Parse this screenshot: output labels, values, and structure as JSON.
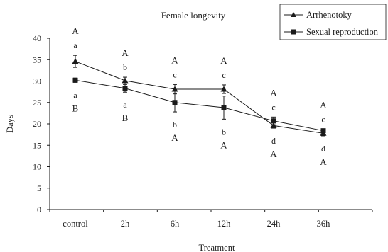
{
  "chart_data": {
    "type": "line",
    "title": "Female longevity",
    "xlabel": "Treatment",
    "ylabel": "Days",
    "categories": [
      "control",
      "2h",
      "6h",
      "12h",
      "24h",
      "36h"
    ],
    "ylim": [
      0,
      40
    ],
    "yticks": [
      0,
      5,
      10,
      15,
      20,
      25,
      30,
      35,
      40
    ],
    "grid": false,
    "legend_position": "top-right",
    "series": [
      {
        "name": "Arrhenotoky",
        "marker": "triangle",
        "values": [
          34.6,
          30.1,
          28.1,
          28.1,
          19.6,
          17.8
        ],
        "errors": [
          1.4,
          0.8,
          1.1,
          1.0,
          0.6,
          0.6
        ],
        "letters_lower": [
          "a",
          "b",
          "c",
          "c",
          "d",
          "d"
        ],
        "letters_upper": [
          "A",
          "A",
          "A",
          "A",
          "A",
          "A"
        ]
      },
      {
        "name": "Sexual reproduction",
        "marker": "square",
        "values": [
          30.2,
          28.3,
          25.0,
          23.8,
          20.7,
          18.4
        ],
        "errors": [
          0.5,
          0.9,
          2.2,
          2.7,
          0.9,
          0.4
        ],
        "letters_lower": [
          "a",
          "a",
          "b",
          "b",
          "c",
          "c"
        ],
        "letters_upper": [
          "B",
          "B",
          "A",
          "A",
          "A",
          "A"
        ]
      }
    ],
    "colors": {
      "line": "#1a1a1a",
      "background": "#ffffff"
    }
  }
}
